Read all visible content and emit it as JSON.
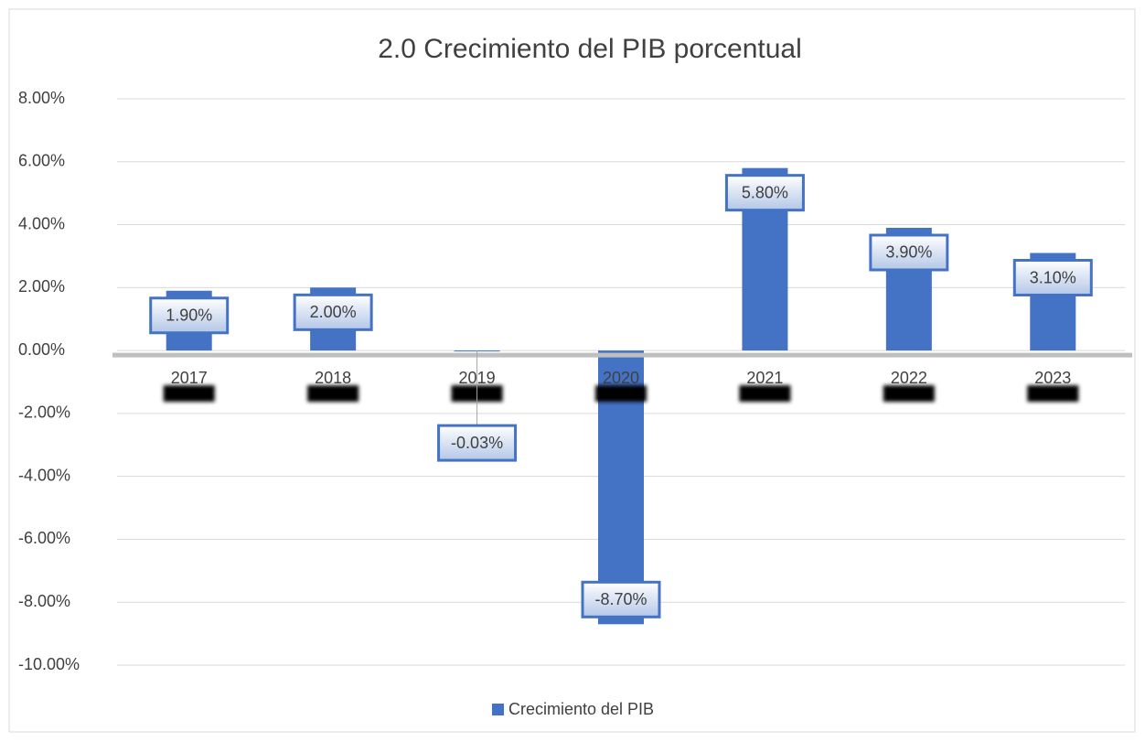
{
  "chart_data": {
    "type": "bar",
    "title": "2.0 Crecimiento del PIB porcentual",
    "categories": [
      "2017",
      "2018",
      "2019",
      "2020",
      "2021",
      "2022",
      "2023"
    ],
    "series": [
      {
        "name": "Crecimiento del PIB",
        "color": "#4472c4",
        "values": [
          1.9,
          2.0,
          -0.03,
          -8.7,
          5.8,
          3.9,
          3.1
        ],
        "value_labels": [
          "1.90%",
          "2.00%",
          "-0.03%",
          "-8.70%",
          "5.80%",
          "3.90%",
          "3.10%"
        ]
      }
    ],
    "ylim": [
      -10,
      8
    ],
    "yticks": [
      {
        "value": -10,
        "label": "-10.00%"
      },
      {
        "value": -8,
        "label": "-8.00%"
      },
      {
        "value": -6,
        "label": "-6.00%"
      },
      {
        "value": -4,
        "label": "-4.00%"
      },
      {
        "value": -2,
        "label": "-2.00%"
      },
      {
        "value": 0,
        "label": "0.00%"
      },
      {
        "value": 2,
        "label": "2.00%"
      },
      {
        "value": 4,
        "label": "4.00%"
      },
      {
        "value": 6,
        "label": "6.00%"
      },
      {
        "value": 8,
        "label": "8.00%"
      }
    ],
    "grid": true,
    "legend": "bottom"
  }
}
